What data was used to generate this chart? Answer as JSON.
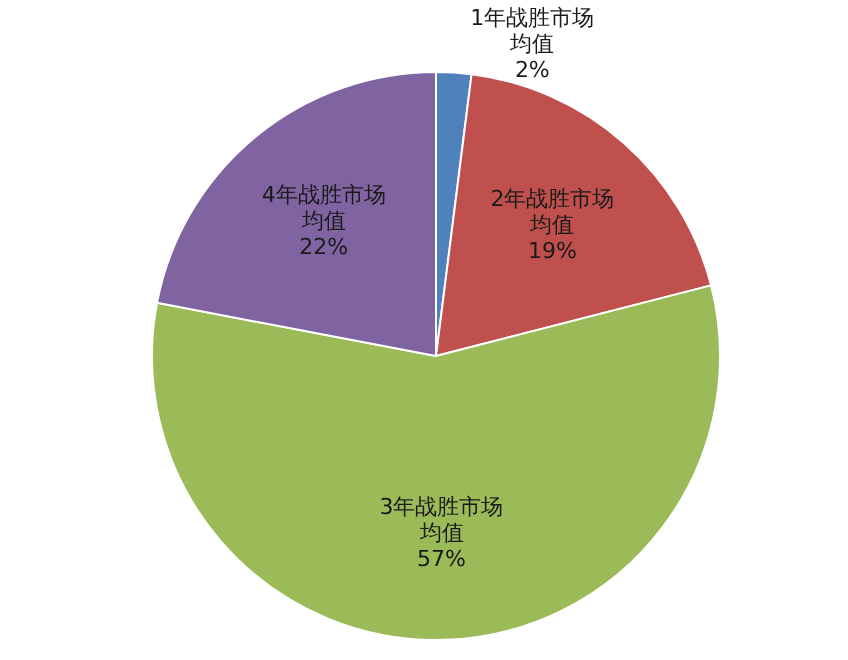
{
  "chart_data": {
    "type": "pie",
    "categories": [
      "1年战胜市场均值",
      "2年战胜市场均值",
      "3年战胜市场均值",
      "4年战胜市场均值"
    ],
    "values": [
      2,
      19,
      57,
      22
    ],
    "value_labels": [
      "2%",
      "19%",
      "57%",
      "22%"
    ],
    "colors": [
      "#4f81bd",
      "#c0504d",
      "#9bbb59",
      "#8064a2"
    ]
  }
}
